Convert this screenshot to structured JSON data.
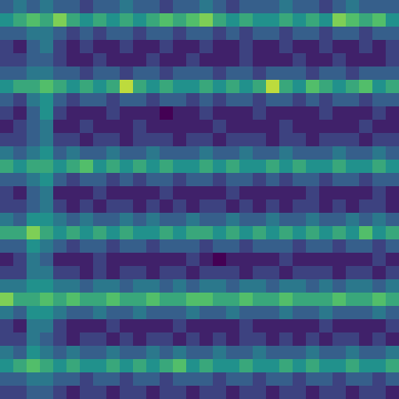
{
  "chart_data": {
    "type": "heatmap",
    "tick_labels": false,
    "color_range": [
      0,
      1
    ],
    "cells": [
      [
        0.3,
        0.4,
        0.3,
        0.4,
        0.3,
        0.3,
        0.2,
        0.3,
        0.3,
        0.4,
        0.3,
        0.3,
        0.2,
        0.3,
        0.3,
        0.4,
        0.3,
        0.2,
        0.3,
        0.3,
        0.3,
        0.4,
        0.3,
        0.3,
        0.2,
        0.3,
        0.4,
        0.3,
        0.3,
        0.3
      ],
      [
        0.5,
        0.6,
        0.7,
        0.6,
        0.8,
        0.6,
        0.5,
        0.6,
        0.5,
        0.6,
        0.5,
        0.6,
        0.7,
        0.6,
        0.7,
        0.8,
        0.6,
        0.5,
        0.6,
        0.5,
        0.5,
        0.6,
        0.5,
        0.6,
        0.5,
        0.8,
        0.7,
        0.6,
        0.7,
        0.5
      ],
      [
        0.3,
        0.3,
        0.4,
        0.4,
        0.3,
        0.2,
        0.3,
        0.2,
        0.3,
        0.3,
        0.2,
        0.3,
        0.3,
        0.2,
        0.3,
        0.3,
        0.2,
        0.3,
        0.2,
        0.3,
        0.3,
        0.2,
        0.3,
        0.3,
        0.2,
        0.3,
        0.3,
        0.2,
        0.3,
        0.3
      ],
      [
        0.2,
        0.1,
        0.3,
        0.4,
        0.2,
        0.1,
        0.2,
        0.1,
        0.1,
        0.2,
        0.1,
        0.1,
        0.2,
        0.1,
        0.1,
        0.2,
        0.1,
        0.1,
        0.2,
        0.1,
        0.1,
        0.2,
        0.1,
        0.1,
        0.2,
        0.1,
        0.1,
        0.2,
        0.1,
        0.2
      ],
      [
        0.2,
        0.2,
        0.3,
        0.3,
        0.2,
        0.1,
        0.1,
        0.2,
        0.1,
        0.1,
        0.1,
        0.2,
        0.1,
        0.1,
        0.2,
        0.1,
        0.1,
        0.1,
        0.2,
        0.1,
        0.1,
        0.1,
        0.2,
        0.1,
        0.1,
        0.2,
        0.1,
        0.1,
        0.1,
        0.2
      ],
      [
        0.3,
        0.3,
        0.4,
        0.4,
        0.3,
        0.3,
        0.2,
        0.3,
        0.3,
        0.2,
        0.3,
        0.3,
        0.2,
        0.3,
        0.3,
        0.3,
        0.2,
        0.3,
        0.3,
        0.2,
        0.3,
        0.3,
        0.3,
        0.2,
        0.3,
        0.3,
        0.2,
        0.3,
        0.3,
        0.3
      ],
      [
        0.5,
        0.6,
        0.6,
        0.7,
        0.6,
        0.5,
        0.6,
        0.5,
        0.6,
        0.9,
        0.6,
        0.5,
        0.6,
        0.5,
        0.5,
        0.6,
        0.5,
        0.6,
        0.5,
        0.6,
        0.9,
        0.6,
        0.5,
        0.7,
        0.6,
        0.5,
        0.6,
        0.7,
        0.5,
        0.6
      ],
      [
        0.3,
        0.2,
        0.4,
        0.5,
        0.3,
        0.2,
        0.3,
        0.3,
        0.2,
        0.3,
        0.3,
        0.2,
        0.3,
        0.3,
        0.2,
        0.3,
        0.2,
        0.3,
        0.3,
        0.2,
        0.3,
        0.3,
        0.2,
        0.3,
        0.2,
        0.3,
        0.3,
        0.2,
        0.3,
        0.3
      ],
      [
        0.2,
        0.1,
        0.3,
        0.5,
        0.2,
        0.1,
        0.1,
        0.1,
        0.2,
        0.1,
        0.1,
        0.1,
        0.0,
        0.1,
        0.1,
        0.2,
        0.1,
        0.1,
        0.1,
        0.2,
        0.1,
        0.1,
        0.1,
        0.1,
        0.2,
        0.1,
        0.1,
        0.1,
        0.2,
        0.1
      ],
      [
        0.1,
        0.2,
        0.3,
        0.4,
        0.1,
        0.1,
        0.2,
        0.1,
        0.1,
        0.1,
        0.2,
        0.1,
        0.1,
        0.1,
        0.1,
        0.1,
        0.2,
        0.1,
        0.1,
        0.1,
        0.1,
        0.2,
        0.1,
        0.1,
        0.1,
        0.1,
        0.1,
        0.2,
        0.1,
        0.1
      ],
      [
        0.2,
        0.2,
        0.3,
        0.4,
        0.2,
        0.2,
        0.1,
        0.2,
        0.2,
        0.1,
        0.2,
        0.2,
        0.2,
        0.1,
        0.2,
        0.2,
        0.1,
        0.2,
        0.2,
        0.2,
        0.1,
        0.2,
        0.2,
        0.1,
        0.2,
        0.2,
        0.2,
        0.1,
        0.2,
        0.2
      ],
      [
        0.4,
        0.3,
        0.4,
        0.5,
        0.3,
        0.4,
        0.3,
        0.3,
        0.4,
        0.3,
        0.3,
        0.4,
        0.3,
        0.3,
        0.3,
        0.4,
        0.3,
        0.3,
        0.4,
        0.3,
        0.3,
        0.4,
        0.3,
        0.3,
        0.3,
        0.4,
        0.3,
        0.3,
        0.4,
        0.3
      ],
      [
        0.6,
        0.5,
        0.6,
        0.6,
        0.5,
        0.6,
        0.7,
        0.5,
        0.6,
        0.5,
        0.6,
        0.5,
        0.6,
        0.5,
        0.5,
        0.6,
        0.5,
        0.6,
        0.5,
        0.5,
        0.6,
        0.5,
        0.6,
        0.5,
        0.5,
        0.6,
        0.5,
        0.5,
        0.6,
        0.5
      ],
      [
        0.3,
        0.3,
        0.4,
        0.5,
        0.3,
        0.2,
        0.3,
        0.3,
        0.2,
        0.3,
        0.2,
        0.3,
        0.3,
        0.2,
        0.3,
        0.3,
        0.2,
        0.3,
        0.3,
        0.2,
        0.3,
        0.2,
        0.3,
        0.3,
        0.2,
        0.3,
        0.3,
        0.2,
        0.3,
        0.3
      ],
      [
        0.2,
        0.1,
        0.3,
        0.4,
        0.1,
        0.1,
        0.1,
        0.2,
        0.1,
        0.1,
        0.1,
        0.1,
        0.2,
        0.1,
        0.1,
        0.1,
        0.1,
        0.2,
        0.1,
        0.1,
        0.1,
        0.1,
        0.1,
        0.2,
        0.1,
        0.1,
        0.1,
        0.1,
        0.2,
        0.1
      ],
      [
        0.2,
        0.2,
        0.3,
        0.4,
        0.2,
        0.1,
        0.2,
        0.1,
        0.2,
        0.2,
        0.1,
        0.2,
        0.1,
        0.2,
        0.1,
        0.2,
        0.2,
        0.1,
        0.2,
        0.1,
        0.2,
        0.1,
        0.2,
        0.2,
        0.1,
        0.2,
        0.1,
        0.2,
        0.2,
        0.1
      ],
      [
        0.4,
        0.3,
        0.5,
        0.5,
        0.4,
        0.3,
        0.4,
        0.3,
        0.3,
        0.4,
        0.3,
        0.4,
        0.3,
        0.3,
        0.4,
        0.3,
        0.3,
        0.4,
        0.3,
        0.3,
        0.4,
        0.3,
        0.3,
        0.4,
        0.3,
        0.3,
        0.4,
        0.3,
        0.4,
        0.3
      ],
      [
        0.6,
        0.6,
        0.8,
        0.6,
        0.5,
        0.6,
        0.5,
        0.6,
        0.5,
        0.6,
        0.5,
        0.5,
        0.6,
        0.5,
        0.6,
        0.6,
        0.5,
        0.6,
        0.5,
        0.6,
        0.5,
        0.6,
        0.5,
        0.6,
        0.5,
        0.6,
        0.5,
        0.7,
        0.5,
        0.6
      ],
      [
        0.3,
        0.3,
        0.5,
        0.4,
        0.3,
        0.2,
        0.3,
        0.3,
        0.2,
        0.3,
        0.3,
        0.2,
        0.3,
        0.3,
        0.3,
        0.2,
        0.3,
        0.3,
        0.2,
        0.3,
        0.3,
        0.3,
        0.2,
        0.3,
        0.3,
        0.2,
        0.3,
        0.3,
        0.2,
        0.3
      ],
      [
        0.1,
        0.2,
        0.4,
        0.3,
        0.1,
        0.1,
        0.1,
        0.2,
        0.1,
        0.1,
        0.1,
        0.1,
        0.1,
        0.1,
        0.2,
        0.1,
        0.0,
        0.1,
        0.1,
        0.1,
        0.1,
        0.2,
        0.1,
        0.1,
        0.1,
        0.1,
        0.1,
        0.1,
        0.2,
        0.1
      ],
      [
        0.2,
        0.2,
        0.4,
        0.4,
        0.2,
        0.2,
        0.1,
        0.2,
        0.1,
        0.2,
        0.2,
        0.1,
        0.2,
        0.2,
        0.1,
        0.2,
        0.2,
        0.2,
        0.1,
        0.2,
        0.2,
        0.1,
        0.2,
        0.2,
        0.2,
        0.1,
        0.2,
        0.2,
        0.1,
        0.2
      ],
      [
        0.4,
        0.4,
        0.5,
        0.5,
        0.4,
        0.4,
        0.3,
        0.4,
        0.4,
        0.3,
        0.4,
        0.4,
        0.3,
        0.4,
        0.3,
        0.4,
        0.4,
        0.3,
        0.4,
        0.4,
        0.3,
        0.4,
        0.4,
        0.3,
        0.4,
        0.3,
        0.4,
        0.4,
        0.3,
        0.4
      ],
      [
        0.8,
        0.6,
        0.6,
        0.7,
        0.6,
        0.7,
        0.6,
        0.6,
        0.7,
        0.6,
        0.6,
        0.7,
        0.6,
        0.6,
        0.7,
        0.7,
        0.6,
        0.6,
        0.7,
        0.6,
        0.6,
        0.7,
        0.6,
        0.6,
        0.6,
        0.7,
        0.6,
        0.6,
        0.7,
        0.6
      ],
      [
        0.4,
        0.3,
        0.5,
        0.5,
        0.4,
        0.3,
        0.3,
        0.4,
        0.3,
        0.3,
        0.4,
        0.3,
        0.3,
        0.3,
        0.4,
        0.3,
        0.3,
        0.4,
        0.3,
        0.3,
        0.3,
        0.4,
        0.3,
        0.3,
        0.4,
        0.3,
        0.3,
        0.3,
        0.4,
        0.3
      ],
      [
        0.2,
        0.1,
        0.4,
        0.4,
        0.2,
        0.1,
        0.1,
        0.1,
        0.2,
        0.1,
        0.1,
        0.1,
        0.1,
        0.2,
        0.1,
        0.1,
        0.1,
        0.1,
        0.2,
        0.1,
        0.1,
        0.1,
        0.1,
        0.1,
        0.2,
        0.1,
        0.1,
        0.1,
        0.1,
        0.2
      ],
      [
        0.2,
        0.2,
        0.4,
        0.3,
        0.2,
        0.1,
        0.2,
        0.2,
        0.1,
        0.2,
        0.1,
        0.2,
        0.2,
        0.1,
        0.2,
        0.1,
        0.2,
        0.1,
        0.2,
        0.2,
        0.1,
        0.2,
        0.1,
        0.2,
        0.1,
        0.2,
        0.2,
        0.1,
        0.2,
        0.1
      ],
      [
        0.4,
        0.3,
        0.5,
        0.4,
        0.3,
        0.4,
        0.3,
        0.3,
        0.4,
        0.3,
        0.3,
        0.4,
        0.3,
        0.4,
        0.3,
        0.3,
        0.4,
        0.3,
        0.3,
        0.4,
        0.3,
        0.3,
        0.3,
        0.4,
        0.3,
        0.3,
        0.4,
        0.3,
        0.3,
        0.4
      ],
      [
        0.5,
        0.6,
        0.7,
        0.6,
        0.5,
        0.6,
        0.5,
        0.5,
        0.6,
        0.5,
        0.6,
        0.5,
        0.6,
        0.7,
        0.5,
        0.6,
        0.5,
        0.5,
        0.6,
        0.5,
        0.5,
        0.6,
        0.5,
        0.6,
        0.5,
        0.5,
        0.6,
        0.5,
        0.5,
        0.6
      ],
      [
        0.3,
        0.3,
        0.4,
        0.4,
        0.3,
        0.3,
        0.2,
        0.3,
        0.3,
        0.2,
        0.3,
        0.3,
        0.2,
        0.3,
        0.3,
        0.3,
        0.2,
        0.3,
        0.3,
        0.2,
        0.3,
        0.3,
        0.2,
        0.3,
        0.3,
        0.2,
        0.3,
        0.3,
        0.2,
        0.3
      ],
      [
        0.2,
        0.2,
        0.3,
        0.3,
        0.2,
        0.1,
        0.2,
        0.2,
        0.1,
        0.2,
        0.2,
        0.1,
        0.2,
        0.2,
        0.1,
        0.2,
        0.2,
        0.1,
        0.2,
        0.2,
        0.1,
        0.2,
        0.2,
        0.1,
        0.2,
        0.2,
        0.1,
        0.2,
        0.2,
        0.1
      ]
    ]
  }
}
